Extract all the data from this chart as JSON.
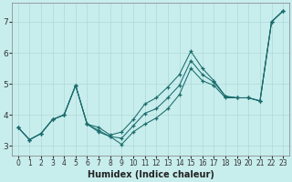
{
  "xlabel": "Humidex (Indice chaleur)",
  "bg_color": "#c8eded",
  "grid_color": "#b0d8d8",
  "line_color": "#1a6b6b",
  "xlim": [
    -0.5,
    23.5
  ],
  "ylim": [
    2.7,
    7.6
  ],
  "xticks": [
    0,
    1,
    2,
    3,
    4,
    5,
    6,
    7,
    8,
    9,
    10,
    11,
    12,
    13,
    14,
    15,
    16,
    17,
    18,
    19,
    20,
    21,
    22,
    23
  ],
  "yticks": [
    3,
    4,
    5,
    6,
    7
  ],
  "line_top_x": [
    0,
    1,
    2,
    3,
    4,
    5,
    6,
    7,
    8,
    9,
    10,
    11,
    12,
    13,
    14,
    15,
    16,
    17,
    18,
    19,
    20,
    21,
    22,
    23
  ],
  "line_top_y": [
    3.6,
    3.2,
    3.4,
    3.85,
    4.0,
    4.95,
    3.7,
    3.6,
    3.35,
    3.45,
    3.85,
    4.35,
    4.55,
    4.9,
    5.3,
    6.05,
    5.5,
    5.1,
    4.6,
    4.55,
    4.55,
    4.45,
    7.0,
    7.35
  ],
  "line_mid_x": [
    0,
    1,
    2,
    3,
    4,
    5,
    6,
    7,
    8,
    9,
    10,
    11,
    12,
    13,
    14,
    15,
    16,
    17,
    18,
    19,
    20,
    21,
    22,
    23
  ],
  "line_mid_y": [
    3.6,
    3.2,
    3.4,
    3.85,
    4.0,
    4.95,
    3.7,
    3.5,
    3.3,
    3.25,
    3.65,
    4.05,
    4.2,
    4.55,
    4.95,
    5.75,
    5.3,
    5.05,
    4.6,
    4.55,
    4.55,
    4.45,
    7.0,
    7.35
  ],
  "line_bot_x": [
    0,
    1,
    2,
    3,
    4,
    5,
    6,
    7,
    8,
    9,
    10,
    11,
    12,
    13,
    14,
    15,
    16,
    17,
    18,
    19,
    20,
    21,
    22,
    23
  ],
  "line_bot_y": [
    3.6,
    3.2,
    3.4,
    3.85,
    4.0,
    4.95,
    3.7,
    3.45,
    3.3,
    3.05,
    3.45,
    3.7,
    3.9,
    4.2,
    4.65,
    5.5,
    5.1,
    4.95,
    4.55,
    4.55,
    4.55,
    4.45,
    7.0,
    7.35
  ]
}
